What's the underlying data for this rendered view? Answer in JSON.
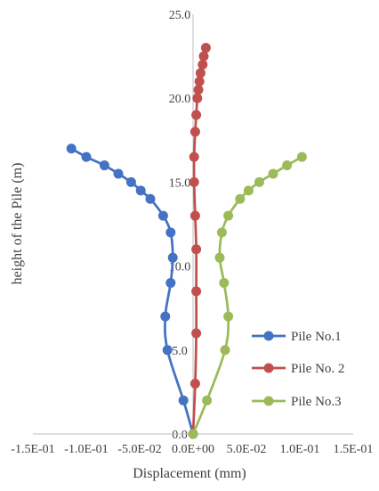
{
  "chart_data": {
    "type": "scatter",
    "title": "",
    "xlabel": "Displacement (mm)",
    "ylabel": "height of the Pile (m)",
    "xlim": [
      -0.15,
      0.15
    ],
    "ylim": [
      0,
      25
    ],
    "xticks": [
      -0.15,
      -0.1,
      -0.05,
      0,
      0.05,
      0.1,
      0.15
    ],
    "xtick_labels": [
      "-1.5E-01",
      "-1.0E-01",
      "-5.0E-02",
      "0.0E+00",
      "5.0E-02",
      "1.0E-01",
      "1.5E-01"
    ],
    "yticks": [
      0,
      5,
      10,
      15,
      20,
      25
    ],
    "ytick_labels": [
      "0.0",
      "5.0",
      "10.0",
      "15.0",
      "20.0",
      "25.0"
    ],
    "grid": false,
    "legend_position": "bottom-right",
    "series": [
      {
        "name": "Pile No.1",
        "color": "#4472C4",
        "points": [
          [
            0,
            0
          ],
          [
            -0.009,
            2
          ],
          [
            -0.024,
            5
          ],
          [
            -0.026,
            7
          ],
          [
            -0.021,
            9
          ],
          [
            -0.019,
            10.5
          ],
          [
            -0.021,
            12
          ],
          [
            -0.028,
            13
          ],
          [
            -0.04,
            14
          ],
          [
            -0.049,
            14.5
          ],
          [
            -0.058,
            15
          ],
          [
            -0.07,
            15.5
          ],
          [
            -0.083,
            16
          ],
          [
            -0.1,
            16.5
          ],
          [
            -0.114,
            17
          ]
        ]
      },
      {
        "name": "Pile No. 2",
        "color": "#C0504D",
        "points": [
          [
            0,
            0
          ],
          [
            0.002,
            3
          ],
          [
            0.003,
            6
          ],
          [
            0.003,
            8.5
          ],
          [
            0.003,
            11
          ],
          [
            0.002,
            13
          ],
          [
            0.001,
            15
          ],
          [
            0.001,
            16.5
          ],
          [
            0.002,
            18
          ],
          [
            0.003,
            19
          ],
          [
            0.004,
            20
          ],
          [
            0.005,
            20.5
          ],
          [
            0.006,
            21
          ],
          [
            0.007,
            21.5
          ],
          [
            0.009,
            22
          ],
          [
            0.01,
            22.5
          ],
          [
            0.012,
            23
          ]
        ]
      },
      {
        "name": "Pile No.3",
        "color": "#9BBB59",
        "points": [
          [
            0,
            0
          ],
          [
            0.013,
            2
          ],
          [
            0.03,
            5
          ],
          [
            0.033,
            7
          ],
          [
            0.029,
            9
          ],
          [
            0.025,
            10.5
          ],
          [
            0.027,
            12
          ],
          [
            0.033,
            13
          ],
          [
            0.044,
            14
          ],
          [
            0.052,
            14.5
          ],
          [
            0.062,
            15
          ],
          [
            0.075,
            15.5
          ],
          [
            0.088,
            16
          ],
          [
            0.102,
            16.5
          ]
        ]
      }
    ]
  }
}
